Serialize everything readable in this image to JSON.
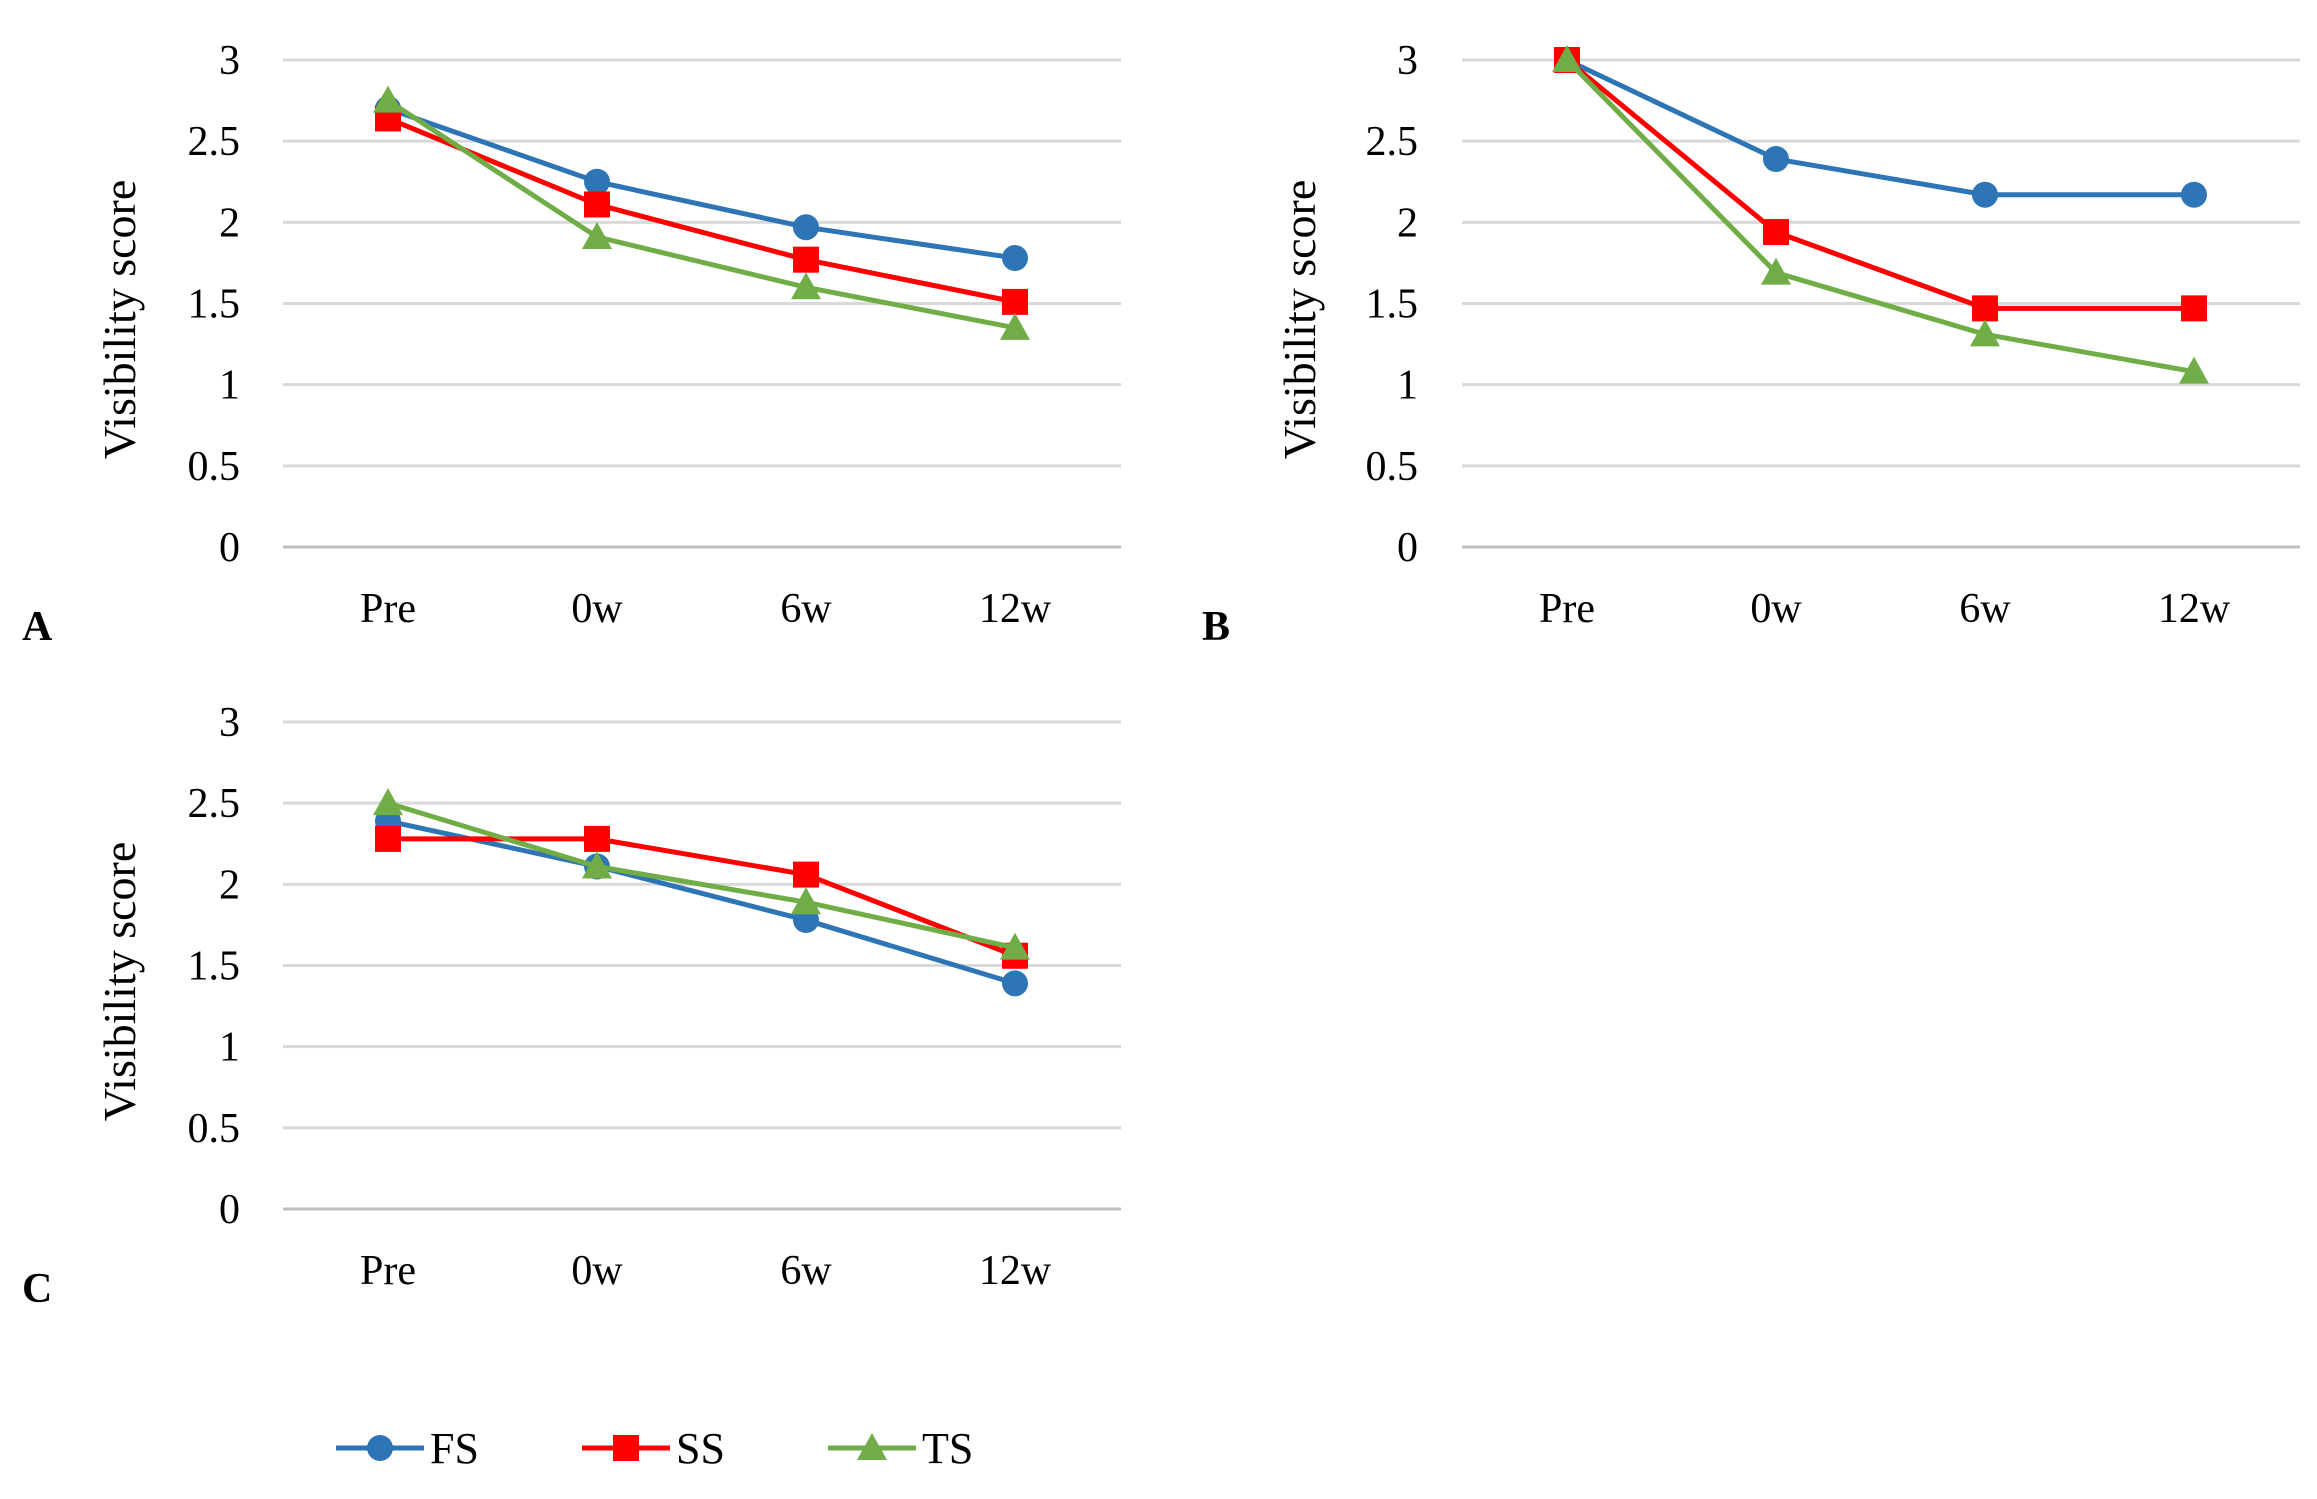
{
  "chart_data": [
    {
      "type": "line",
      "panel_label": "A",
      "categories": [
        "Pre",
        "0w",
        "6w",
        "12w"
      ],
      "ylabel": "Visibility score",
      "xlabel": "",
      "ylim": [
        0,
        3
      ],
      "yticks": [
        "0",
        "0.5",
        "1",
        "1.5",
        "2",
        "2.5",
        "3"
      ],
      "grid": true,
      "series": [
        {
          "name": "FS",
          "color": "#2e75b6",
          "marker": "circle",
          "values": [
            2.7,
            2.25,
            1.97,
            1.78
          ]
        },
        {
          "name": "SS",
          "color": "#ff0000",
          "marker": "square",
          "values": [
            2.64,
            2.11,
            1.77,
            1.51
          ]
        },
        {
          "name": "TS",
          "color": "#70ad47",
          "marker": "triangle",
          "values": [
            2.75,
            1.91,
            1.6,
            1.35
          ]
        }
      ]
    },
    {
      "type": "line",
      "panel_label": "B",
      "categories": [
        "Pre",
        "0w",
        "6w",
        "12w"
      ],
      "ylabel": "Visibility score",
      "xlabel": "",
      "ylim": [
        0,
        3
      ],
      "yticks": [
        "0",
        "0.5",
        "1",
        "1.5",
        "2",
        "2.5",
        "3"
      ],
      "grid": true,
      "series": [
        {
          "name": "FS",
          "color": "#2e75b6",
          "marker": "circle",
          "values": [
            3.0,
            2.39,
            2.17,
            2.17
          ]
        },
        {
          "name": "SS",
          "color": "#ff0000",
          "marker": "square",
          "values": [
            3.0,
            1.94,
            1.47,
            1.47
          ]
        },
        {
          "name": "TS",
          "color": "#70ad47",
          "marker": "triangle",
          "values": [
            3.0,
            1.69,
            1.31,
            1.08
          ]
        }
      ]
    },
    {
      "type": "line",
      "panel_label": "C",
      "categories": [
        "Pre",
        "0w",
        "6w",
        "12w"
      ],
      "ylabel": "Visibility score",
      "xlabel": "",
      "ylim": [
        0,
        3
      ],
      "yticks": [
        "0",
        "0.5",
        "1",
        "1.5",
        "2",
        "2.5",
        "3"
      ],
      "grid": true,
      "series": [
        {
          "name": "FS",
          "color": "#2e75b6",
          "marker": "circle",
          "values": [
            2.39,
            2.11,
            1.78,
            1.39
          ]
        },
        {
          "name": "SS",
          "color": "#ff0000",
          "marker": "square",
          "values": [
            2.28,
            2.28,
            2.06,
            1.56
          ]
        },
        {
          "name": "TS",
          "color": "#70ad47",
          "marker": "triangle",
          "values": [
            2.5,
            2.11,
            1.89,
            1.61
          ]
        }
      ]
    }
  ],
  "legend": {
    "placement": "bottom",
    "entries": [
      {
        "name": "FS",
        "color": "#2e75b6",
        "marker": "circle"
      },
      {
        "name": "SS",
        "color": "#ff0000",
        "marker": "square"
      },
      {
        "name": "TS",
        "color": "#70ad47",
        "marker": "triangle"
      }
    ]
  }
}
